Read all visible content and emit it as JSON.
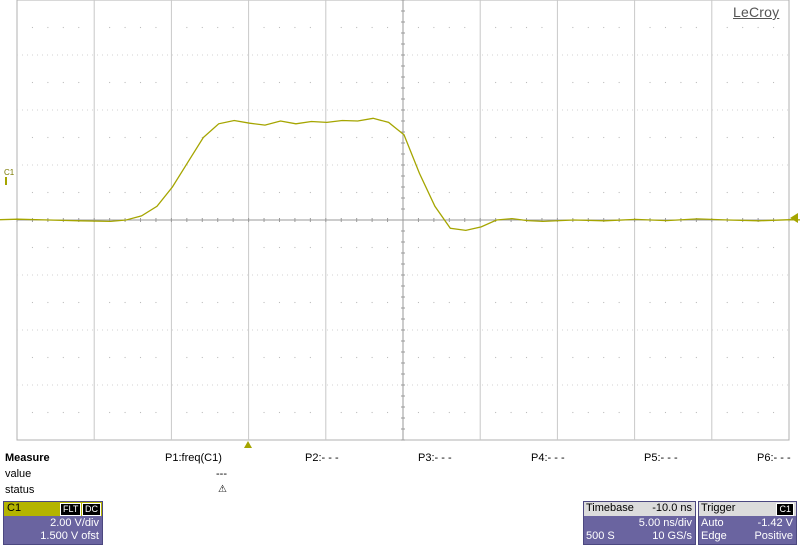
{
  "brand": "LeCroy",
  "channel_marker": "C1",
  "trace_color": "#a5a500",
  "measure": {
    "title": "Measure",
    "row_value": "value",
    "row_status": "status",
    "params": [
      {
        "label": "P1:freq(C1)",
        "value": "---",
        "status_icon": "warning-icon"
      },
      {
        "label": "P2:- - -"
      },
      {
        "label": "P3:- - -"
      },
      {
        "label": "P4:- - -"
      },
      {
        "label": "P5:- - -"
      },
      {
        "label": "P6:- - -"
      }
    ],
    "status_symbol": "⚠"
  },
  "channel_panel": {
    "name": "C1",
    "tag1": "FLT",
    "tag2": "DC",
    "vdiv": "2.00 V/div",
    "offset": "1.500 V ofst"
  },
  "timebase": {
    "title": "Timebase",
    "delay": "-10.0 ns",
    "tdiv": "5.00 ns/div",
    "samples": "500 S",
    "rate": "10 GS/s"
  },
  "trigger": {
    "title": "Trigger",
    "source": "C1",
    "mode": "Auto",
    "level": "-1.42 V",
    "type": "Edge",
    "slope": "Positive"
  },
  "waveform": {
    "time_unit": "ns",
    "volt_unit": "V",
    "points": [
      [
        -35,
        -1.5
      ],
      [
        -33,
        -1.52
      ],
      [
        -31,
        -1.48
      ],
      [
        -29,
        -1.51
      ],
      [
        -27,
        -1.5
      ],
      [
        -25,
        -1.47
      ],
      [
        -23,
        -1.5
      ],
      [
        -21,
        -1.53
      ],
      [
        -19,
        -1.55
      ],
      [
        -18,
        -1.5
      ],
      [
        -17,
        -1.35
      ],
      [
        -16,
        -1.0
      ],
      [
        -15,
        -0.3
      ],
      [
        -14,
        0.6
      ],
      [
        -13,
        1.5
      ],
      [
        -12,
        2.0
      ],
      [
        -11,
        2.12
      ],
      [
        -10,
        2.02
      ],
      [
        -9,
        1.95
      ],
      [
        -8,
        2.1
      ],
      [
        -7,
        2.0
      ],
      [
        -6,
        2.08
      ],
      [
        -5,
        2.05
      ],
      [
        -4,
        2.12
      ],
      [
        -3,
        2.1
      ],
      [
        -2,
        2.2
      ],
      [
        -1,
        2.05
      ],
      [
        0,
        1.6
      ],
      [
        1,
        0.2
      ],
      [
        2,
        -1.0
      ],
      [
        3,
        -1.8
      ],
      [
        4,
        -1.88
      ],
      [
        5,
        -1.75
      ],
      [
        6,
        -1.5
      ],
      [
        7,
        -1.45
      ],
      [
        8,
        -1.52
      ],
      [
        9,
        -1.55
      ],
      [
        11,
        -1.5
      ],
      [
        13,
        -1.53
      ],
      [
        15,
        -1.48
      ],
      [
        17,
        -1.52
      ],
      [
        19,
        -1.46
      ],
      [
        21,
        -1.5
      ],
      [
        23,
        -1.53
      ],
      [
        25,
        -1.49
      ],
      [
        27,
        -1.51
      ],
      [
        29,
        -1.48
      ],
      [
        31,
        -1.52
      ],
      [
        33,
        -1.5
      ],
      [
        35,
        -1.49
      ]
    ]
  }
}
